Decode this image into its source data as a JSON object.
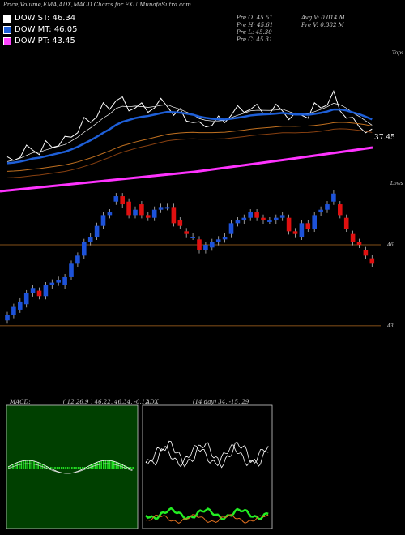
{
  "header": {
    "title": "Price,Volume,EMA,ADX,MACD Charts for FXU",
    "site": "MunafaSutra.com"
  },
  "legend": [
    {
      "label": "DOW ST: 46.34",
      "color": "#ffffff"
    },
    {
      "label": "DOW MT: 46.05",
      "color": "#1e5fd8"
    },
    {
      "label": "DOW PT: 43.45",
      "color": "#ff44ff"
    }
  ],
  "stats": {
    "open": "Pre  O: 45.51",
    "high": "Pre  H: 45.61",
    "low": "Pre  L: 45.30",
    "close": "Pre  C: 45.31",
    "avg_vol": "Avg V: 0.014  M",
    "pre_vol": "Pre  V: 0.382  M"
  },
  "price_panel": {
    "top_label": "Tops",
    "bottom_label": "Lows",
    "ema_value": "37.45",
    "level1": "46",
    "level2": "43"
  },
  "macd_panel": {
    "label": "MACD:",
    "params": "( 12,26,9 ) 46.22, 46.34, -0.12"
  },
  "adx_panel": {
    "label": "ADX",
    "params": "(14  day) 34, -15, 29"
  },
  "colors": {
    "up": "#1d52d9",
    "down": "#e01010",
    "level": "#b06a20",
    "ema_short": "#ffffff",
    "ema_mid": "#1e5fd8",
    "ema_long": "#ff33ff",
    "macd_bg": "#004000"
  },
  "chart_data": [
    {
      "type": "candlestick",
      "title": "Price,Volume,EMA,ADX,MACD Charts for FXU",
      "y_levels": [
        46,
        43
      ],
      "candles": [
        {
          "o": 43.2,
          "c": 43.4
        },
        {
          "o": 43.4,
          "c": 43.7
        },
        {
          "o": 43.6,
          "c": 43.9
        },
        {
          "o": 43.8,
          "c": 44.2
        },
        {
          "o": 44.2,
          "c": 44.4
        },
        {
          "o": 44.3,
          "c": 44.1
        },
        {
          "o": 44.1,
          "c": 44.5
        },
        {
          "o": 44.5,
          "c": 44.6
        },
        {
          "o": 44.6,
          "c": 44.7
        },
        {
          "o": 44.5,
          "c": 44.8
        },
        {
          "o": 44.8,
          "c": 45.3
        },
        {
          "o": 45.3,
          "c": 45.6
        },
        {
          "o": 45.6,
          "c": 46.1
        },
        {
          "o": 46.1,
          "c": 46.3
        },
        {
          "o": 46.3,
          "c": 46.7
        },
        {
          "o": 46.7,
          "c": 47.1
        },
        {
          "o": 47.1,
          "c": 47.2
        },
        {
          "o": 47.6,
          "c": 47.8
        },
        {
          "o": 47.8,
          "c": 47.5
        },
        {
          "o": 47.6,
          "c": 47.1
        },
        {
          "o": 47.1,
          "c": 47.3
        },
        {
          "o": 47.5,
          "c": 47.1
        },
        {
          "o": 47.1,
          "c": 47.0
        },
        {
          "o": 47.0,
          "c": 47.3
        },
        {
          "o": 47.3,
          "c": 47.4
        },
        {
          "o": 47.4,
          "c": 47.4
        },
        {
          "o": 47.4,
          "c": 46.8
        },
        {
          "o": 46.9,
          "c": 46.7
        },
        {
          "o": 46.5,
          "c": 46.4
        },
        {
          "o": 46.3,
          "c": 46.3
        },
        {
          "o": 46.2,
          "c": 45.8
        },
        {
          "o": 45.8,
          "c": 46.0
        },
        {
          "o": 45.9,
          "c": 46.1
        },
        {
          "o": 46.1,
          "c": 46.2
        },
        {
          "o": 46.2,
          "c": 46.3
        },
        {
          "o": 46.4,
          "c": 46.8
        },
        {
          "o": 46.8,
          "c": 46.9
        },
        {
          "o": 46.9,
          "c": 47.0
        },
        {
          "o": 47.0,
          "c": 47.2
        },
        {
          "o": 47.2,
          "c": 47.0
        },
        {
          "o": 47.0,
          "c": 46.9
        },
        {
          "o": 46.9,
          "c": 46.9
        },
        {
          "o": 46.9,
          "c": 47.0
        },
        {
          "o": 47.0,
          "c": 47.1
        },
        {
          "o": 47.0,
          "c": 46.5
        },
        {
          "o": 46.5,
          "c": 46.4
        },
        {
          "o": 46.3,
          "c": 46.8
        },
        {
          "o": 46.8,
          "c": 46.6
        },
        {
          "o": 46.6,
          "c": 47.1
        },
        {
          "o": 47.2,
          "c": 47.3
        },
        {
          "o": 47.3,
          "c": 47.5
        },
        {
          "o": 47.6,
          "c": 47.9
        },
        {
          "o": 47.5,
          "c": 47.1
        },
        {
          "o": 47.0,
          "c": 46.6
        },
        {
          "o": 46.4,
          "c": 46.1
        },
        {
          "o": 46.1,
          "c": 46.0
        },
        {
          "o": 45.8,
          "c": 45.6
        },
        {
          "o": 45.5,
          "c": 45.3
        }
      ]
    }
  ]
}
